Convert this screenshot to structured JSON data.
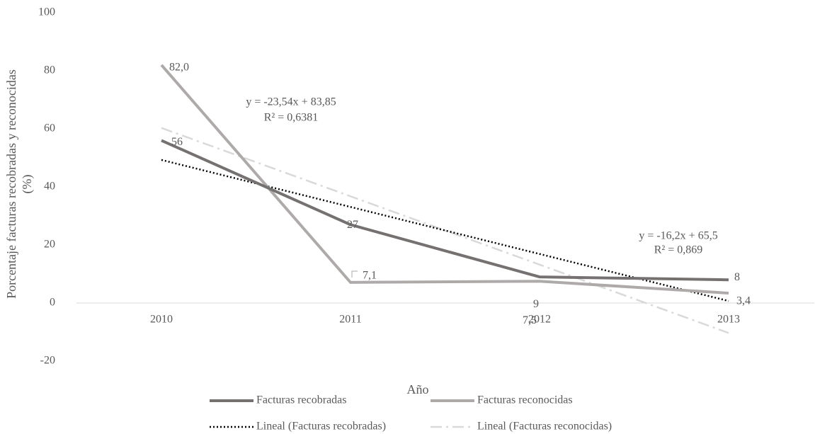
{
  "chart_data": {
    "type": "line",
    "categories": [
      "2010",
      "2011",
      "2012",
      "2013"
    ],
    "series": [
      {
        "name": "Facturas recobradas",
        "color": "#767171",
        "style": "solid",
        "values": [
          56,
          27,
          9,
          8
        ]
      },
      {
        "name": "Facturas reconocidas",
        "color": "#aeaaaa",
        "style": "solid",
        "values": [
          82.0,
          7.1,
          7.5,
          3.4
        ],
        "value_labels": [
          "82,0",
          "7,1",
          "7,5",
          "3,4"
        ]
      },
      {
        "name": "Lineal (Facturas recobradas)",
        "color": "#000000",
        "style": "dotted",
        "values": [
          49.3,
          33.1,
          16.9,
          0.7
        ]
      },
      {
        "name": "Lineal (Facturas reconocidas)",
        "color": "#d9d9d9",
        "style": "dashdot",
        "values": [
          60.31,
          36.77,
          13.23,
          -10.31
        ]
      }
    ],
    "ylim": [
      -20,
      100
    ],
    "yticks": [
      -20,
      0,
      20,
      40,
      60,
      80,
      100
    ],
    "xlabel": "Año",
    "ylabel": [
      "Porcentaje facturas recobradas y reconocidas",
      "(%)"
    ],
    "annotations": [
      "y = -23,54x + 83,85",
      "R² = 0,6381",
      "y = -16,2x + 65,5",
      "R² = 0,869"
    ],
    "legend": "bottom"
  }
}
